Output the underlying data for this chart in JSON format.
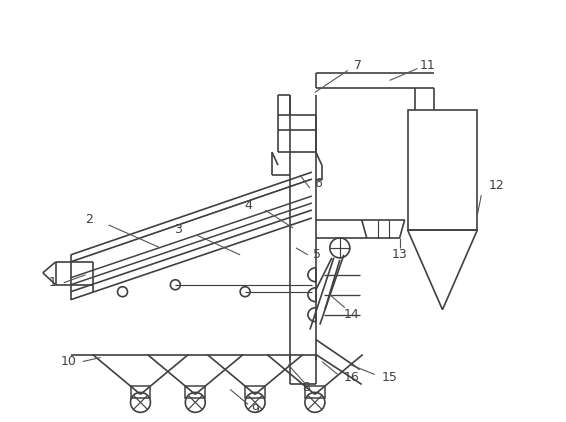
{
  "bg": "#ffffff",
  "lc": "#404040",
  "lw": 1.2,
  "fs": 9,
  "figw": 5.66,
  "figh": 4.22,
  "dpi": 100
}
